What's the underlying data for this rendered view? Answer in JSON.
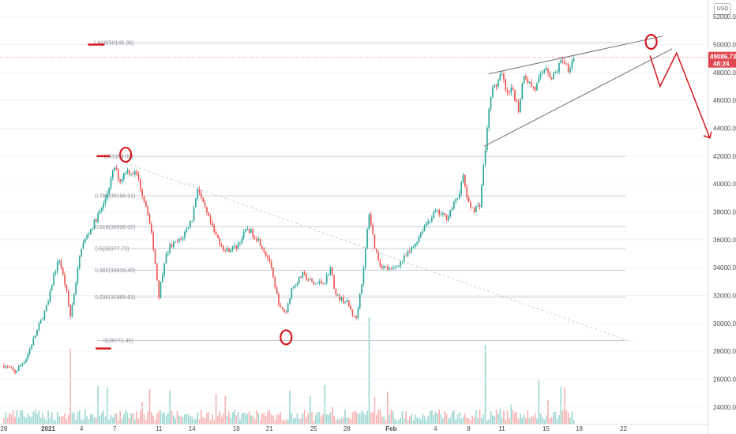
{
  "chart_data": {
    "type": "candlestick",
    "currency": "USD",
    "title": "",
    "xlabel": "",
    "ylabel": "",
    "ylim": [
      22800,
      53200
    ],
    "y_ticks": [
      24000,
      26000,
      28000,
      30000,
      32000,
      34000,
      36000,
      38000,
      40000,
      42000,
      44000,
      46000,
      48000,
      50000,
      52000
    ],
    "y_tick_labels": [
      "24000.00",
      "26000.00",
      "28000.00",
      "30000.00",
      "32000.00",
      "34000.00",
      "36000.00",
      "38000.00",
      "40000.00",
      "42000.00",
      "44000.00",
      "46000.00",
      "48000.00",
      "50000.00",
      "52000.00"
    ],
    "x_ticks": [
      {
        "day": 0,
        "label": "28"
      },
      {
        "day": 4,
        "label": "2021"
      },
      {
        "day": 7,
        "label": "4"
      },
      {
        "day": 10,
        "label": "7"
      },
      {
        "day": 14,
        "label": "11"
      },
      {
        "day": 17,
        "label": "14"
      },
      {
        "day": 21,
        "label": "18"
      },
      {
        "day": 24,
        "label": "21"
      },
      {
        "day": 28,
        "label": "25"
      },
      {
        "day": 31,
        "label": "28"
      },
      {
        "day": 35,
        "label": "Feb"
      },
      {
        "day": 39,
        "label": "4"
      },
      {
        "day": 42,
        "label": "8"
      },
      {
        "day": 45,
        "label": "11"
      },
      {
        "day": 49,
        "label": "15"
      },
      {
        "day": 52,
        "label": "18"
      },
      {
        "day": 56,
        "label": "22"
      }
    ],
    "x_range_days": [
      0,
      58
    ],
    "last_price": {
      "value": 49086.73,
      "label": "49086.73",
      "countdown": "48:24",
      "color": "#e0464f"
    },
    "fib_levels": [
      {
        "ratio": 1.618,
        "price": 50145.35,
        "label": "1.618(50145.35)"
      },
      {
        "ratio": 1,
        "price": 41984.0,
        "label": "1(41984.00)"
      },
      {
        "ratio": 0.786,
        "price": 39156.51,
        "label": "0.786(39156.51)"
      },
      {
        "ratio": 0.618,
        "price": 36936.05,
        "label": "0.618(36936.05)"
      },
      {
        "ratio": 0.5,
        "price": 35377.73,
        "label": "0.5(35377.73)"
      },
      {
        "ratio": 0.382,
        "price": 33819.4,
        "label": "0.382(33819.40)"
      },
      {
        "ratio": 0.236,
        "price": 31889.61,
        "label": "0.236(31889.61)"
      },
      {
        "ratio": 0,
        "price": 28771.45,
        "label": "0(28771.45)"
      }
    ],
    "price_path": [
      [
        0,
        27000
      ],
      [
        1,
        26500
      ],
      [
        2,
        27500
      ],
      [
        3,
        29500
      ],
      [
        4,
        31500
      ],
      [
        4.5,
        33500
      ],
      [
        5,
        34600
      ],
      [
        5.6,
        32500
      ],
      [
        6,
        30500
      ],
      [
        6.5,
        33000
      ],
      [
        7,
        35500
      ],
      [
        8,
        37000
      ],
      [
        9,
        38500
      ],
      [
        10,
        41200
      ],
      [
        10.5,
        40200
      ],
      [
        11,
        41000
      ],
      [
        12,
        40700
      ],
      [
        13,
        38000
      ],
      [
        13.5,
        35500
      ],
      [
        14,
        32000
      ],
      [
        14.5,
        34500
      ],
      [
        15,
        35500
      ],
      [
        16,
        36000
      ],
      [
        17,
        37500
      ],
      [
        17.5,
        39800
      ],
      [
        18,
        38500
      ],
      [
        19,
        36500
      ],
      [
        20,
        35200
      ],
      [
        21,
        35500
      ],
      [
        22,
        36800
      ],
      [
        23,
        36000
      ],
      [
        24,
        34500
      ],
      [
        24.5,
        32500
      ],
      [
        25,
        31000
      ],
      [
        25.5,
        30800
      ],
      [
        26,
        32500
      ],
      [
        27,
        33500
      ],
      [
        28,
        32800
      ],
      [
        29,
        33000
      ],
      [
        29.5,
        34000
      ],
      [
        30,
        32000
      ],
      [
        31,
        31500
      ],
      [
        31.8,
        30200
      ],
      [
        32.5,
        33800
      ],
      [
        33,
        38000
      ],
      [
        33.5,
        35500
      ],
      [
        34,
        34200
      ],
      [
        35,
        33800
      ],
      [
        36,
        34500
      ],
      [
        37,
        35500
      ],
      [
        38,
        37000
      ],
      [
        39,
        38000
      ],
      [
        40,
        37600
      ],
      [
        41,
        39000
      ],
      [
        41.5,
        40500
      ],
      [
        42,
        38500
      ],
      [
        42.5,
        38200
      ],
      [
        43,
        38500
      ],
      [
        43.5,
        42500
      ],
      [
        44,
        46500
      ],
      [
        45,
        47800
      ],
      [
        45.5,
        46300
      ],
      [
        46,
        46800
      ],
      [
        46.5,
        45300
      ],
      [
        47,
        48000
      ],
      [
        47.5,
        47200
      ],
      [
        48,
        46800
      ],
      [
        48.5,
        47700
      ],
      [
        49,
        48500
      ],
      [
        49.5,
        47500
      ],
      [
        50,
        48200
      ],
      [
        50.5,
        49000
      ],
      [
        51,
        48300
      ],
      [
        51.5,
        49100
      ]
    ],
    "annotations": {
      "triangle_line": {
        "from": [
          11,
          41500
        ],
        "to": [
          57,
          28600
        ]
      },
      "channel_upper": {
        "from": [
          43.8,
          47900
        ],
        "to": [
          59.5,
          50600
        ]
      },
      "channel_lower": {
        "from": [
          43.4,
          42700
        ],
        "to": [
          60.4,
          49700
        ]
      },
      "projection": [
        [
          58.4,
          49200
        ],
        [
          59.3,
          47000
        ],
        [
          60.8,
          49400
        ],
        [
          63.8,
          43300
        ]
      ],
      "circles": [
        [
          11,
          42100
        ],
        [
          25.5,
          29000
        ],
        [
          58.5,
          50200
        ]
      ],
      "marks": [
        {
          "x": [
            8.3,
            9.8
          ],
          "y": 50000
        },
        {
          "x": [
            9.1,
            10.3
          ],
          "y": 42000
        },
        {
          "x": [
            9.0,
            10.4
          ],
          "y": 28200
        }
      ]
    }
  },
  "ui": {
    "currency_label": "USD",
    "colors": {
      "up": "#26a69a",
      "down": "#ef5350",
      "annotation": "#d6161d",
      "trendline": "#6b6f78",
      "fib_line": "#c9ccd2",
      "grid": "#f0f3fa",
      "price_tag": "#e0464f"
    }
  }
}
